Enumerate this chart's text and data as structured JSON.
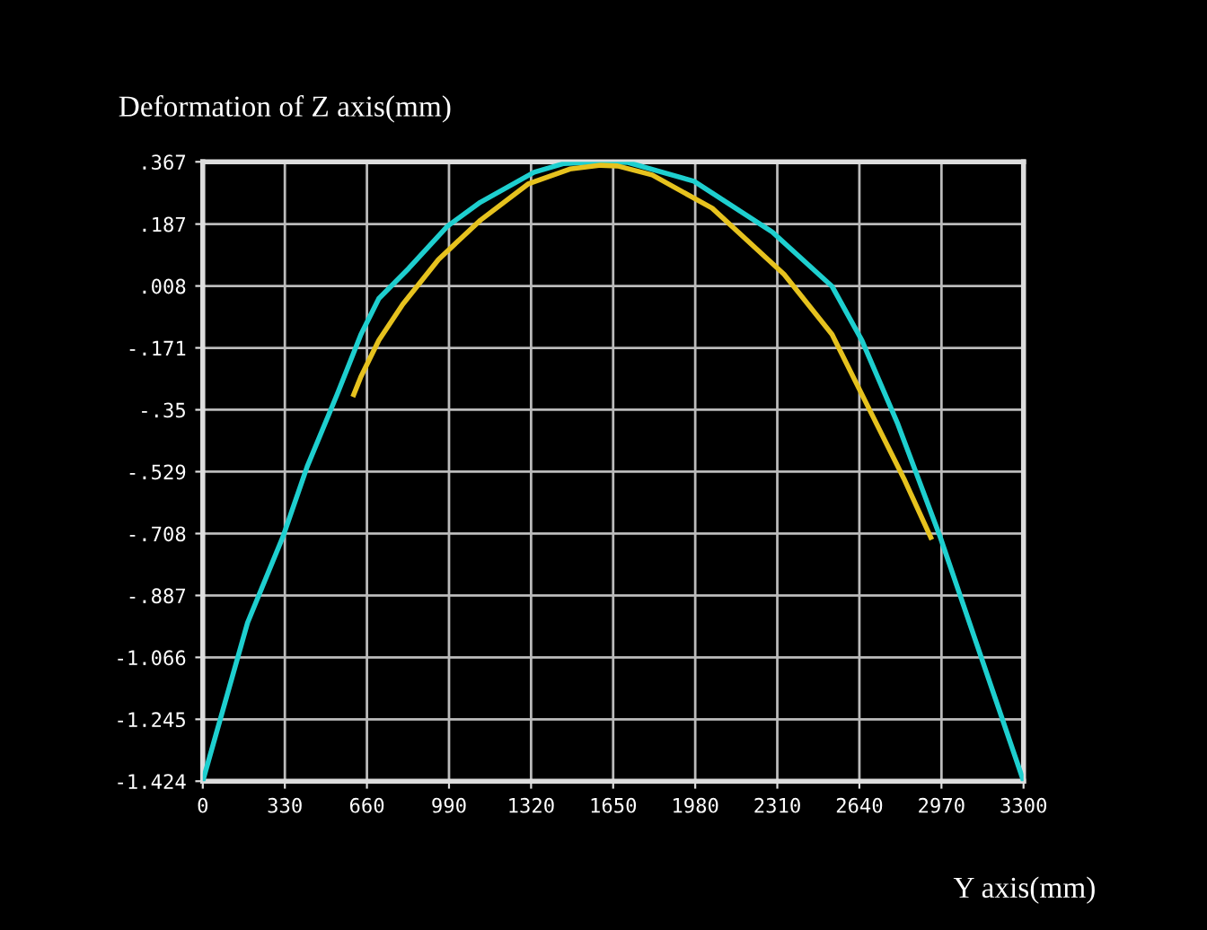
{
  "chart_data": {
    "type": "line",
    "title": "Deformation of Z axis(mm)",
    "xlabel": "Y axis(mm)",
    "xlim": [
      0,
      3300
    ],
    "xticks": [
      0,
      330,
      660,
      990,
      1320,
      1650,
      1980,
      2310,
      2640,
      2970,
      3300
    ],
    "ylim": [
      -1.424,
      0.367
    ],
    "yticks": [
      {
        "value": 0.367,
        "label": ".367"
      },
      {
        "value": 0.187,
        "label": ".187"
      },
      {
        "value": 0.008,
        "label": ".008"
      },
      {
        "value": -0.171,
        "label": "-.171"
      },
      {
        "value": -0.35,
        "label": "-.35"
      },
      {
        "value": -0.529,
        "label": "-.529"
      },
      {
        "value": -0.708,
        "label": "-.708"
      },
      {
        "value": -0.887,
        "label": "-.887"
      },
      {
        "value": -1.066,
        "label": "-1.066"
      },
      {
        "value": -1.245,
        "label": "-1.245"
      },
      {
        "value": -1.424,
        "label": "-1.424"
      }
    ],
    "grid": true,
    "legend": false,
    "marker": "none",
    "line_style": "solid",
    "series": [
      {
        "color": "#1ecfcf",
        "x": [
          0,
          180,
          324,
          420,
          540,
          636,
          708,
          828,
          984,
          1116,
          1332,
          1452,
          1600,
          1710,
          1975,
          2290,
          2530,
          2650,
          2795,
          2963,
          3132,
          3300
        ],
        "values": [
          -1.424,
          -0.966,
          -0.714,
          -0.514,
          -0.306,
          -0.132,
          -0.028,
          0.059,
          0.181,
          0.25,
          0.337,
          0.362,
          0.367,
          0.365,
          0.311,
          0.164,
          0.007,
          -0.149,
          -0.392,
          -0.714,
          -1.07,
          -1.424
        ]
      },
      {
        "color": "#e6c21e",
        "x": [
          607,
          636,
          708,
          804,
          948,
          1116,
          1308,
          1476,
          1600,
          1668,
          1807,
          2048,
          2337,
          2530,
          2674,
          2819,
          2927
        ],
        "values": [
          -0.306,
          -0.254,
          -0.149,
          -0.045,
          0.085,
          0.198,
          0.303,
          0.346,
          0.357,
          0.355,
          0.329,
          0.233,
          0.042,
          -0.132,
          -0.34,
          -0.549,
          -0.719
        ]
      }
    ]
  }
}
